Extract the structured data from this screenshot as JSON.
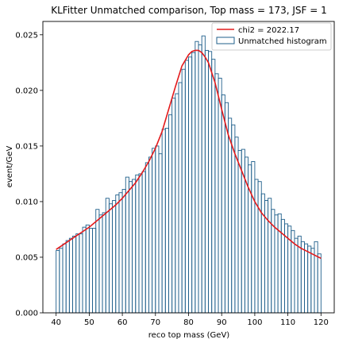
{
  "chart_data": {
    "type": "bar",
    "title": "KLFitter Unmatched comparison, Top mass = 173, JSF = 1",
    "xlabel": "reco top mass (GeV)",
    "ylabel": "event/GeV",
    "xlim": [
      36,
      124
    ],
    "ylim": [
      0,
      0.0262
    ],
    "xticks": [
      40,
      50,
      60,
      70,
      80,
      90,
      100,
      110,
      120
    ],
    "xtick_labels": [
      "40",
      "50",
      "60",
      "70",
      "80",
      "90",
      "100",
      "110",
      "120"
    ],
    "yticks": [
      0.0,
      0.005,
      0.01,
      0.015,
      0.02,
      0.025
    ],
    "ytick_labels": [
      "0.000",
      "0.005",
      "0.010",
      "0.015",
      "0.020",
      "0.025"
    ],
    "grid": false,
    "legend": {
      "placement": "top-right"
    },
    "histogram": {
      "name": "Unmatched histogram",
      "edge_color": "#1f5f8b",
      "bin_start": 40,
      "bin_width": 1,
      "values": [
        0.0056,
        0.0058,
        0.0062,
        0.0065,
        0.0067,
        0.0069,
        0.0071,
        0.0071,
        0.0077,
        0.0079,
        0.0076,
        0.0076,
        0.0093,
        0.0088,
        0.009,
        0.0103,
        0.0098,
        0.0101,
        0.0106,
        0.0108,
        0.0111,
        0.0122,
        0.0118,
        0.012,
        0.0124,
        0.0125,
        0.0127,
        0.0135,
        0.014,
        0.0148,
        0.015,
        0.0143,
        0.0165,
        0.0166,
        0.0178,
        0.0193,
        0.0197,
        0.0207,
        0.0219,
        0.0227,
        0.023,
        0.0234,
        0.0244,
        0.0241,
        0.0249,
        0.0236,
        0.0235,
        0.0228,
        0.0215,
        0.0211,
        0.0196,
        0.0189,
        0.0175,
        0.0169,
        0.0158,
        0.0146,
        0.0147,
        0.014,
        0.0133,
        0.0136,
        0.012,
        0.0118,
        0.0107,
        0.0101,
        0.0103,
        0.0093,
        0.0088,
        0.0089,
        0.0084,
        0.008,
        0.0078,
        0.0074,
        0.0067,
        0.0069,
        0.0064,
        0.0062,
        0.006,
        0.0058,
        0.0064,
        0.0053
      ]
    },
    "fit_curve": {
      "name": "chi2 = 2022.17",
      "color": "#e31a1c",
      "x": [
        40,
        42,
        44,
        46,
        48,
        50,
        52,
        54,
        56,
        58,
        60,
        62,
        64,
        66,
        68,
        70,
        72,
        74,
        76,
        78,
        80,
        81,
        82,
        83,
        84,
        85,
        86,
        88,
        90,
        92,
        94,
        96,
        98,
        100,
        102,
        104,
        106,
        108,
        110,
        112,
        114,
        116,
        118,
        120
      ],
      "y": [
        0.0057,
        0.0061,
        0.0065,
        0.0069,
        0.0073,
        0.0077,
        0.0082,
        0.0087,
        0.0092,
        0.0097,
        0.0103,
        0.011,
        0.0117,
        0.0126,
        0.0136,
        0.0148,
        0.0163,
        0.0183,
        0.0203,
        0.0222,
        0.0232,
        0.0235,
        0.0236,
        0.0236,
        0.0234,
        0.023,
        0.0225,
        0.0207,
        0.0183,
        0.016,
        0.0143,
        0.0128,
        0.0113,
        0.01,
        0.009,
        0.0083,
        0.0077,
        0.0072,
        0.0067,
        0.0062,
        0.0058,
        0.0055,
        0.0052,
        0.0049
      ]
    }
  }
}
